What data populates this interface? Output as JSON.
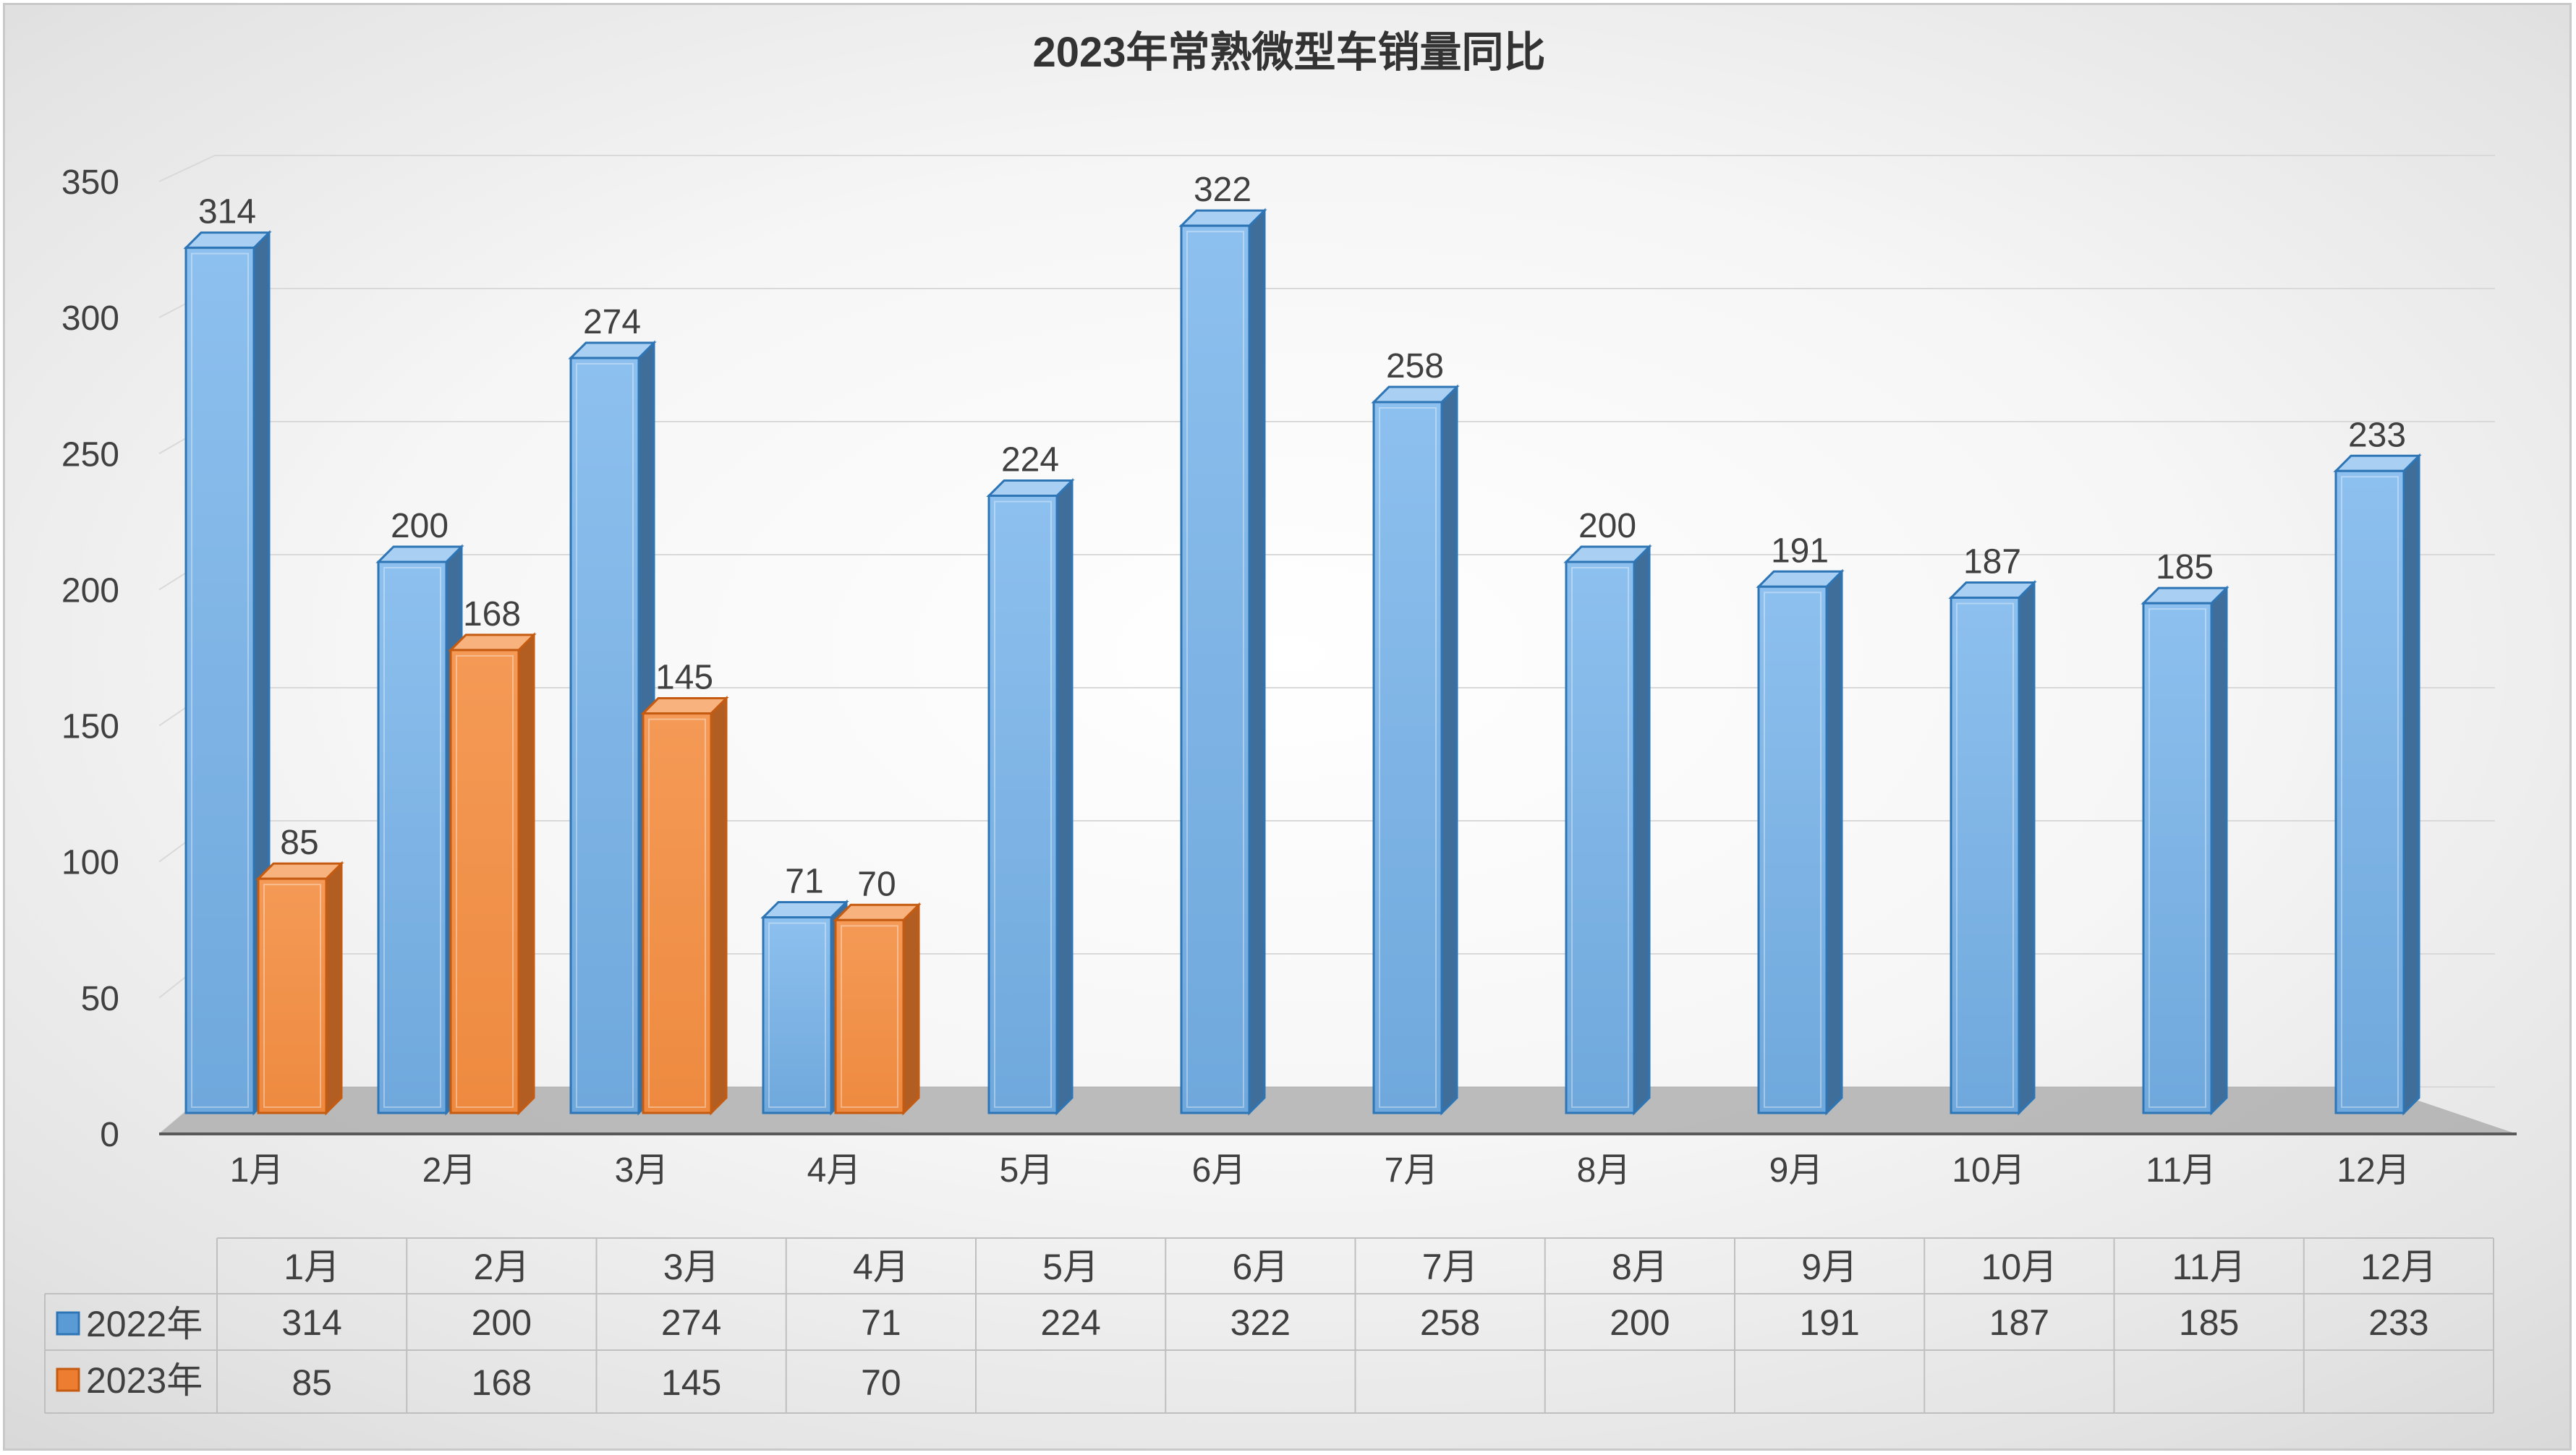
{
  "chart_data": {
    "type": "bar",
    "title": "2023年常熟微型车销量同比",
    "categories": [
      "1月",
      "2月",
      "3月",
      "4月",
      "5月",
      "6月",
      "7月",
      "8月",
      "9月",
      "10月",
      "11月",
      "12月"
    ],
    "series": [
      {
        "name": "2022年",
        "color": "#5b9bd5",
        "values": [
          314,
          200,
          274,
          71,
          224,
          322,
          258,
          200,
          191,
          187,
          185,
          233
        ]
      },
      {
        "name": "2023年",
        "color": "#ed7d31",
        "values": [
          85,
          168,
          145,
          70,
          null,
          null,
          null,
          null,
          null,
          null,
          null,
          null
        ]
      }
    ],
    "yticks": [
      "0",
      "50",
      "100",
      "150",
      "200",
      "250",
      "300",
      "350"
    ],
    "ylim": [
      0,
      350
    ],
    "grid": true,
    "legend": "data-table",
    "style": "3d-clustered-column"
  }
}
